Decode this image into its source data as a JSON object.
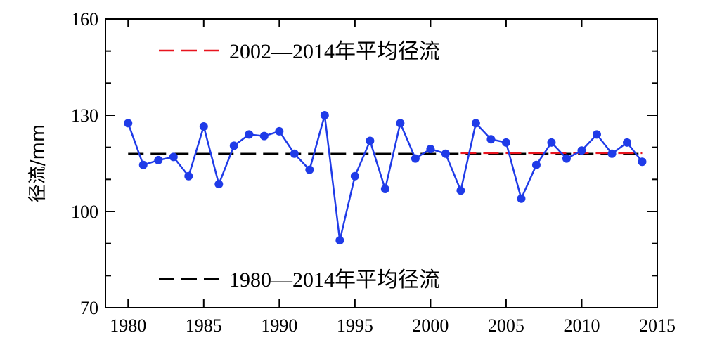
{
  "chart_data": {
    "type": "line",
    "xlabel": "",
    "ylabel": "径流/mm",
    "xlim": [
      1978.5,
      2015
    ],
    "ylim": [
      70,
      160
    ],
    "xticks": [
      1980,
      1985,
      1990,
      1995,
      2000,
      2005,
      2010,
      2015
    ],
    "yticks": [
      70,
      100,
      130,
      160
    ],
    "grid": false,
    "series": [
      {
        "name": "",
        "color": "#1f3be8",
        "x": [
          1980,
          1981,
          1982,
          1983,
          1984,
          1985,
          1986,
          1987,
          1988,
          1989,
          1990,
          1991,
          1992,
          1993,
          1994,
          1995,
          1996,
          1997,
          1998,
          1999,
          2000,
          2001,
          2002,
          2003,
          2004,
          2005,
          2006,
          2007,
          2008,
          2009,
          2010,
          2011,
          2012,
          2013,
          2014
        ],
        "values": [
          127.5,
          114.5,
          116,
          117,
          111,
          126.5,
          108.5,
          120.5,
          124,
          123.5,
          125,
          118,
          113,
          130,
          91,
          111,
          122,
          107,
          127.5,
          116.5,
          119.5,
          118,
          106.5,
          127.5,
          122.5,
          121.5,
          104,
          114.5,
          121.5,
          116.5,
          119,
          124,
          118,
          121.5,
          115.5
        ]
      }
    ],
    "reference_lines": [
      {
        "name": "1980—2014年平均径流",
        "color": "#000000",
        "x": [
          1980,
          2014
        ],
        "value": 118
      },
      {
        "name": "2002—2014年平均径流",
        "color": "#e8141e",
        "x": [
          2002,
          2014
        ],
        "value": 118.2
      }
    ],
    "legend": [
      {
        "label": "2002—2014年平均径流",
        "color": "#e8141e",
        "placement": "top-left"
      },
      {
        "label": "1980—2014年平均径流",
        "color": "#000000",
        "placement": "bottom-left"
      }
    ]
  }
}
